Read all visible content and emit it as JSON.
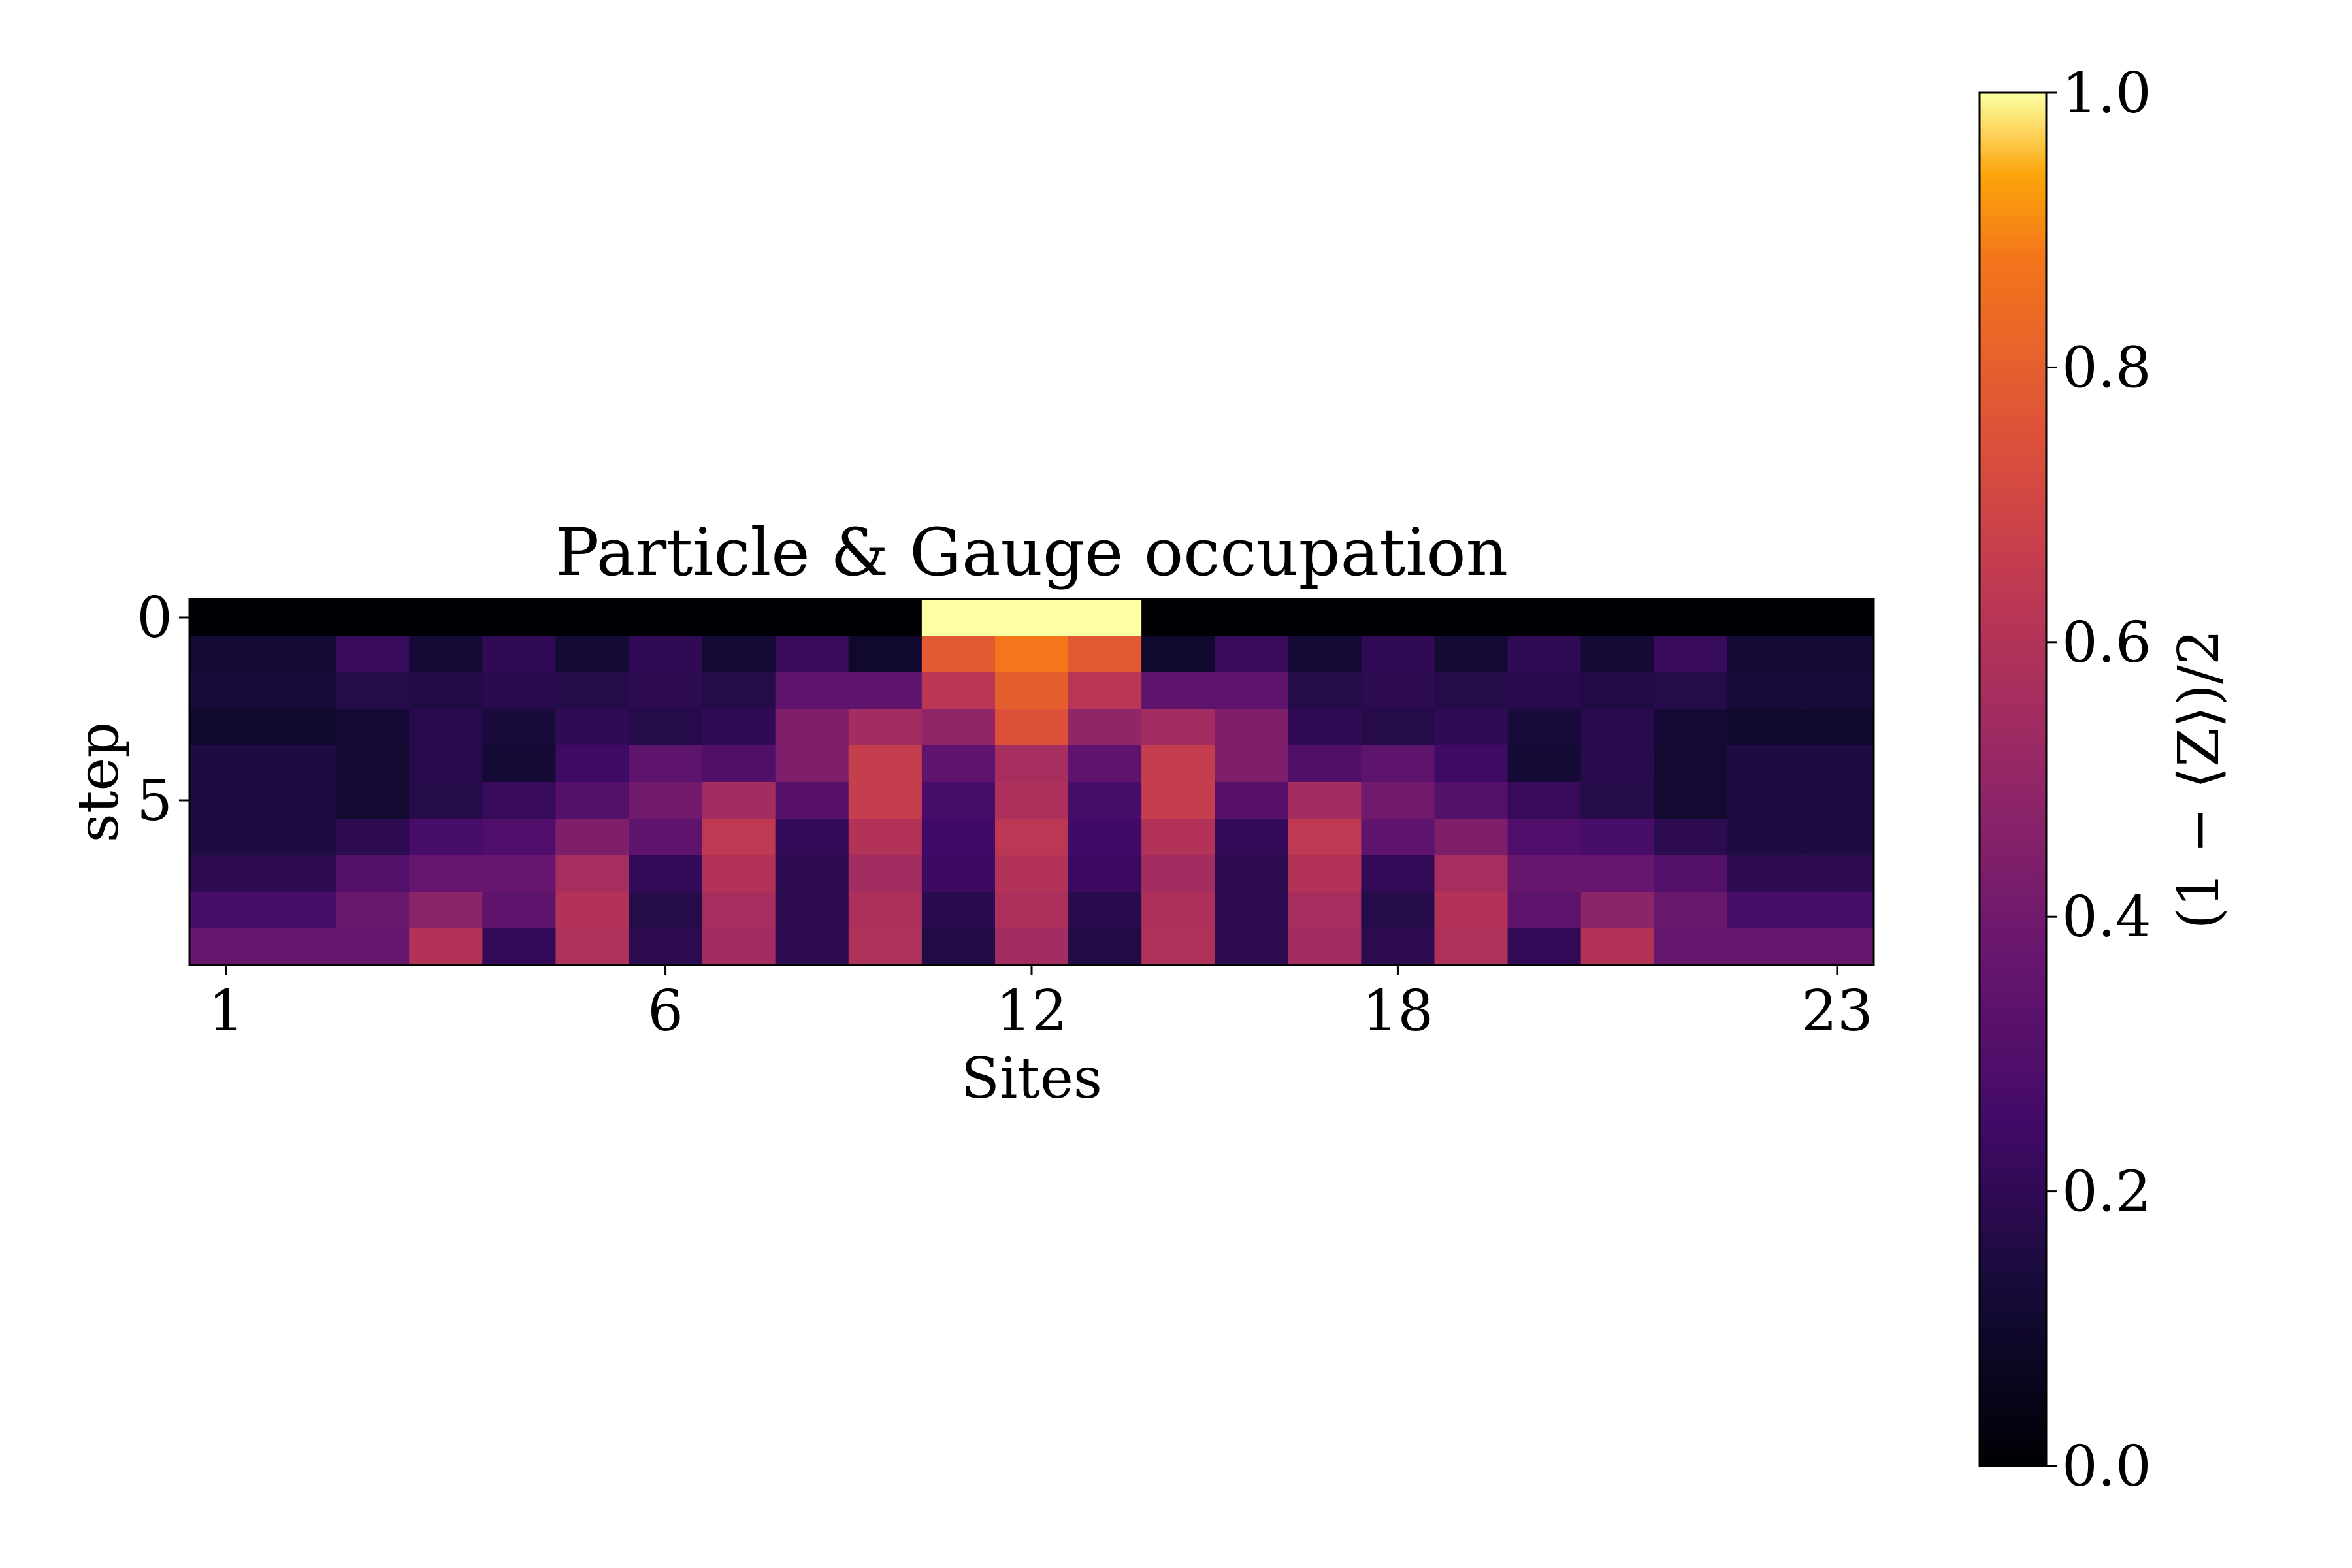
{
  "chart_data": {
    "type": "heatmap",
    "title": "Particle & Gauge occupation",
    "xlabel": "Sites",
    "ylabel": "step",
    "x_ticks": [
      {
        "label": "1",
        "index": 0
      },
      {
        "label": "6",
        "index": 6
      },
      {
        "label": "12",
        "index": 11
      },
      {
        "label": "18",
        "index": 16
      },
      {
        "label": "23",
        "index": 22
      }
    ],
    "y_ticks": [
      {
        "label": "0",
        "index": 0
      },
      {
        "label": "5",
        "index": 5
      }
    ],
    "colormap": "inferno",
    "colorbar": {
      "label": "(1 − ⟨Z⟩)/2",
      "range": [
        0.0,
        1.0
      ],
      "ticks": [
        "0.0",
        "0.2",
        "0.4",
        "0.6",
        "0.8",
        "1.0"
      ]
    },
    "values": [
      [
        0.0,
        0.0,
        0.0,
        0.0,
        0.0,
        0.0,
        0.0,
        0.0,
        0.0,
        0.0,
        1.0,
        1.0,
        1.0,
        0.0,
        0.0,
        0.0,
        0.0,
        0.0,
        0.0,
        0.0,
        0.0,
        0.0,
        0.0
      ],
      [
        0.12,
        0.12,
        0.22,
        0.12,
        0.2,
        0.12,
        0.2,
        0.12,
        0.22,
        0.1,
        0.78,
        0.88,
        0.78,
        0.1,
        0.22,
        0.12,
        0.2,
        0.12,
        0.2,
        0.12,
        0.22,
        0.12,
        0.12
      ],
      [
        0.14,
        0.14,
        0.17,
        0.16,
        0.18,
        0.17,
        0.19,
        0.17,
        0.34,
        0.34,
        0.62,
        0.8,
        0.62,
        0.34,
        0.34,
        0.17,
        0.19,
        0.17,
        0.18,
        0.16,
        0.17,
        0.14,
        0.14
      ],
      [
        0.1,
        0.1,
        0.12,
        0.18,
        0.14,
        0.2,
        0.17,
        0.2,
        0.44,
        0.55,
        0.49,
        0.75,
        0.49,
        0.55,
        0.44,
        0.2,
        0.17,
        0.2,
        0.14,
        0.18,
        0.12,
        0.1,
        0.1
      ],
      [
        0.15,
        0.15,
        0.11,
        0.18,
        0.12,
        0.24,
        0.34,
        0.3,
        0.44,
        0.66,
        0.34,
        0.56,
        0.34,
        0.66,
        0.44,
        0.3,
        0.34,
        0.24,
        0.12,
        0.18,
        0.11,
        0.15,
        0.15
      ],
      [
        0.15,
        0.15,
        0.11,
        0.17,
        0.22,
        0.31,
        0.4,
        0.55,
        0.32,
        0.66,
        0.27,
        0.58,
        0.27,
        0.66,
        0.32,
        0.55,
        0.4,
        0.31,
        0.22,
        0.17,
        0.11,
        0.15,
        0.15
      ],
      [
        0.15,
        0.15,
        0.19,
        0.27,
        0.29,
        0.44,
        0.34,
        0.64,
        0.21,
        0.6,
        0.25,
        0.63,
        0.25,
        0.6,
        0.21,
        0.64,
        0.34,
        0.44,
        0.29,
        0.27,
        0.19,
        0.15,
        0.15
      ],
      [
        0.19,
        0.19,
        0.31,
        0.37,
        0.37,
        0.56,
        0.21,
        0.6,
        0.19,
        0.55,
        0.23,
        0.6,
        0.23,
        0.55,
        0.19,
        0.6,
        0.21,
        0.56,
        0.37,
        0.37,
        0.31,
        0.19,
        0.19
      ],
      [
        0.27,
        0.27,
        0.38,
        0.48,
        0.34,
        0.6,
        0.17,
        0.56,
        0.19,
        0.58,
        0.18,
        0.58,
        0.18,
        0.58,
        0.19,
        0.56,
        0.17,
        0.6,
        0.34,
        0.48,
        0.38,
        0.27,
        0.27
      ],
      [
        0.37,
        0.37,
        0.37,
        0.6,
        0.21,
        0.59,
        0.19,
        0.55,
        0.19,
        0.59,
        0.16,
        0.55,
        0.16,
        0.59,
        0.19,
        0.55,
        0.19,
        0.59,
        0.21,
        0.6,
        0.37,
        0.37,
        0.37
      ]
    ]
  }
}
